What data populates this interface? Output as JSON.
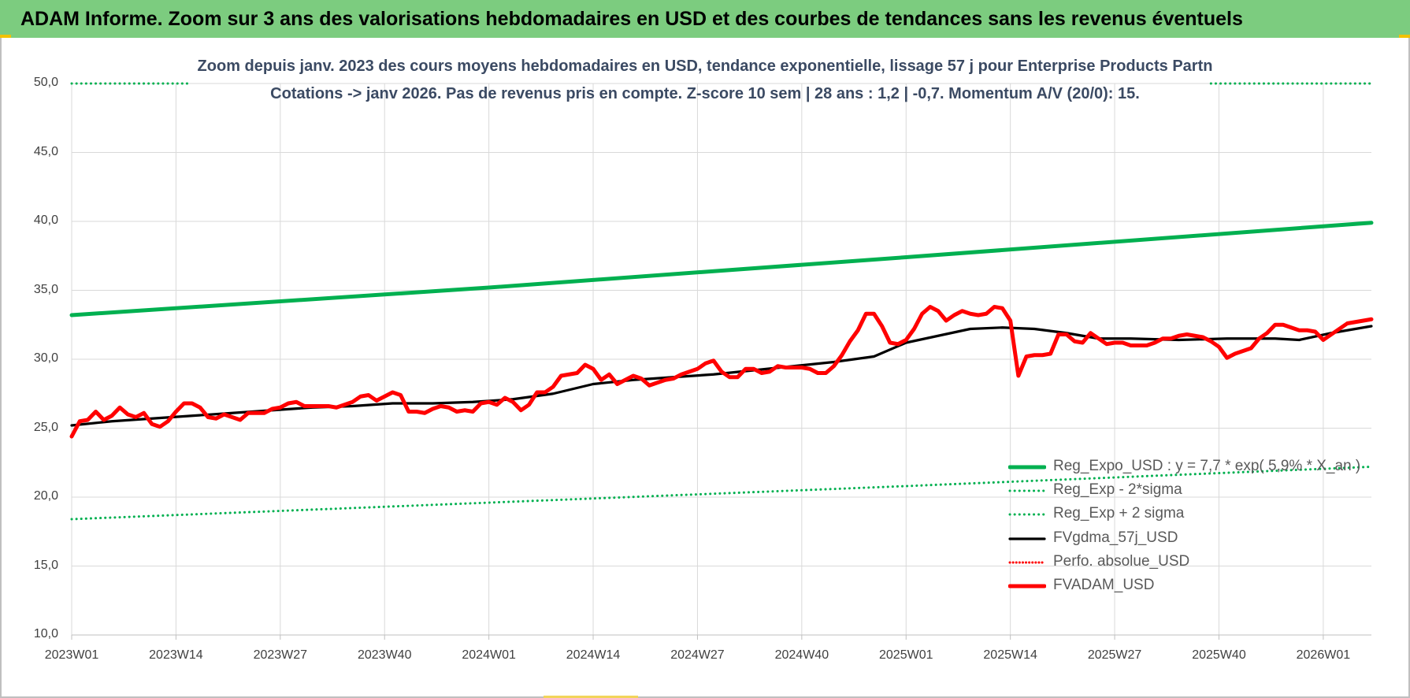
{
  "header": {
    "title": "ADAM Informe. Zoom sur 3 ans des valorisations hebdomadaires en USD et des courbes de tendances sans les revenus éventuels"
  },
  "colors": {
    "banner": "#7ccc7f",
    "trend": "#00b050",
    "fair_value": "#000000",
    "price": "#ff0000",
    "grid": "#d9d9d9"
  },
  "chart_data": {
    "type": "line",
    "title": "Zoom depuis janv. 2023 des cours moyens hebdomadaires en USD, tendance exponentielle, lissage 57 j pour Enterprise Products Partn",
    "subtitle": "Cotations -> janv 2026. Pas de revenus pris en compte. Z-score 10 sem | 28 ans : 1,2 | -0,7. Momentum A/V (20/0): 15.",
    "xlabel": "",
    "ylabel": "",
    "ylim": [
      10,
      50
    ],
    "y_ticks": [
      "10,0",
      "15,0",
      "20,0",
      "25,0",
      "30,0",
      "35,0",
      "40,0",
      "45,0",
      "50,0"
    ],
    "x_ticks": [
      "2023W01",
      "2023W14",
      "2023W27",
      "2023W40",
      "2024W01",
      "2024W14",
      "2024W27",
      "2024W40",
      "2025W01",
      "2025W14",
      "2025W27",
      "2025W40",
      "2026W01"
    ],
    "x_range_weeks": [
      0,
      162
    ],
    "grid": true,
    "legend_position": "bottom-right",
    "series": [
      {
        "name": "Reg_Expo_USD : y = 7,7 * exp( 5,9% * X_an )",
        "style": "solid-thick",
        "color": "#00b050",
        "points": [
          [
            0,
            33.2
          ],
          [
            52,
            35.2
          ],
          [
            104,
            37.4
          ],
          [
            162,
            39.9
          ]
        ]
      },
      {
        "name": "Reg_Exp - 2*sigma",
        "style": "dotted",
        "color": "#00b050",
        "points": [
          [
            0,
            18.4
          ],
          [
            52,
            19.6
          ],
          [
            104,
            20.8
          ],
          [
            162,
            22.2
          ]
        ]
      },
      {
        "name": "Reg_Exp + 2 sigma",
        "style": "dotted",
        "color": "#00b050",
        "points": [
          [
            0,
            50.0
          ],
          [
            14.8,
            50.0
          ],
          [
            142,
            50.0
          ],
          [
            162,
            50.0
          ]
        ]
      },
      {
        "name": "FVgdma_57j_USD",
        "style": "solid",
        "color": "#000000",
        "points": [
          [
            0,
            25.2
          ],
          [
            5,
            25.5
          ],
          [
            10,
            25.7
          ],
          [
            15,
            25.9
          ],
          [
            20,
            26.1
          ],
          [
            25,
            26.3
          ],
          [
            30,
            26.5
          ],
          [
            35,
            26.6
          ],
          [
            40,
            26.8
          ],
          [
            45,
            26.8
          ],
          [
            50,
            26.9
          ],
          [
            55,
            27.1
          ],
          [
            60,
            27.5
          ],
          [
            65,
            28.2
          ],
          [
            70,
            28.5
          ],
          [
            75,
            28.7
          ],
          [
            80,
            28.9
          ],
          [
            85,
            29.2
          ],
          [
            90,
            29.5
          ],
          [
            95,
            29.8
          ],
          [
            100,
            30.2
          ],
          [
            104,
            31.2
          ],
          [
            108,
            31.7
          ],
          [
            112,
            32.2
          ],
          [
            116,
            32.3
          ],
          [
            120,
            32.2
          ],
          [
            124,
            31.9
          ],
          [
            128,
            31.5
          ],
          [
            132,
            31.5
          ],
          [
            138,
            31.4
          ],
          [
            144,
            31.5
          ],
          [
            150,
            31.5
          ],
          [
            153,
            31.4
          ],
          [
            157,
            31.9
          ],
          [
            160,
            32.2
          ],
          [
            162,
            32.4
          ]
        ]
      },
      {
        "name": "Perfo. absolue_USD",
        "style": "dotted",
        "color": "#ff0000",
        "points": []
      },
      {
        "name": "FVADAM_USD",
        "style": "solid-thick",
        "color": "#ff0000",
        "points": [
          [
            0,
            24.4
          ],
          [
            1,
            25.5
          ],
          [
            2,
            25.6
          ],
          [
            3,
            26.2
          ],
          [
            4,
            25.6
          ],
          [
            5,
            25.9
          ],
          [
            6,
            26.5
          ],
          [
            7,
            26.0
          ],
          [
            8,
            25.8
          ],
          [
            9,
            26.1
          ],
          [
            10,
            25.3
          ],
          [
            11,
            25.1
          ],
          [
            12,
            25.5
          ],
          [
            13,
            26.2
          ],
          [
            14,
            26.8
          ],
          [
            15,
            26.8
          ],
          [
            16,
            26.5
          ],
          [
            17,
            25.8
          ],
          [
            18,
            25.7
          ],
          [
            19,
            26.0
          ],
          [
            20,
            25.8
          ],
          [
            21,
            25.6
          ],
          [
            22,
            26.1
          ],
          [
            23,
            26.1
          ],
          [
            24,
            26.1
          ],
          [
            25,
            26.4
          ],
          [
            26,
            26.5
          ],
          [
            27,
            26.8
          ],
          [
            28,
            26.9
          ],
          [
            29,
            26.6
          ],
          [
            30,
            26.6
          ],
          [
            31,
            26.6
          ],
          [
            32,
            26.6
          ],
          [
            33,
            26.5
          ],
          [
            34,
            26.7
          ],
          [
            35,
            26.9
          ],
          [
            36,
            27.3
          ],
          [
            37,
            27.4
          ],
          [
            38,
            27.0
          ],
          [
            39,
            27.3
          ],
          [
            40,
            27.6
          ],
          [
            41,
            27.4
          ],
          [
            42,
            26.2
          ],
          [
            43,
            26.2
          ],
          [
            44,
            26.1
          ],
          [
            45,
            26.4
          ],
          [
            46,
            26.6
          ],
          [
            47,
            26.5
          ],
          [
            48,
            26.2
          ],
          [
            49,
            26.3
          ],
          [
            50,
            26.2
          ],
          [
            51,
            26.8
          ],
          [
            52,
            26.9
          ],
          [
            53,
            26.7
          ],
          [
            54,
            27.2
          ],
          [
            55,
            26.9
          ],
          [
            56,
            26.3
          ],
          [
            57,
            26.7
          ],
          [
            58,
            27.6
          ],
          [
            59,
            27.6
          ],
          [
            60,
            28.0
          ],
          [
            61,
            28.8
          ],
          [
            62,
            28.9
          ],
          [
            63,
            29.0
          ],
          [
            64,
            29.6
          ],
          [
            65,
            29.3
          ],
          [
            66,
            28.5
          ],
          [
            67,
            28.9
          ],
          [
            68,
            28.2
          ],
          [
            69,
            28.5
          ],
          [
            70,
            28.8
          ],
          [
            71,
            28.6
          ],
          [
            72,
            28.1
          ],
          [
            73,
            28.3
          ],
          [
            74,
            28.5
          ],
          [
            75,
            28.6
          ],
          [
            76,
            28.9
          ],
          [
            77,
            29.1
          ],
          [
            78,
            29.3
          ],
          [
            79,
            29.7
          ],
          [
            80,
            29.9
          ],
          [
            81,
            29.1
          ],
          [
            82,
            28.7
          ],
          [
            83,
            28.7
          ],
          [
            84,
            29.3
          ],
          [
            85,
            29.3
          ],
          [
            86,
            29.0
          ],
          [
            87,
            29.1
          ],
          [
            88,
            29.5
          ],
          [
            89,
            29.4
          ],
          [
            90,
            29.4
          ],
          [
            91,
            29.4
          ],
          [
            92,
            29.3
          ],
          [
            93,
            29.0
          ],
          [
            94,
            29.0
          ],
          [
            95,
            29.5
          ],
          [
            96,
            30.3
          ],
          [
            97,
            31.3
          ],
          [
            98,
            32.1
          ],
          [
            99,
            33.3
          ],
          [
            100,
            33.3
          ],
          [
            101,
            32.4
          ],
          [
            102,
            31.2
          ],
          [
            103,
            31.1
          ],
          [
            104,
            31.4
          ],
          [
            105,
            32.2
          ],
          [
            106,
            33.3
          ],
          [
            107,
            33.8
          ],
          [
            108,
            33.5
          ],
          [
            109,
            32.8
          ],
          [
            110,
            33.2
          ],
          [
            111,
            33.5
          ],
          [
            112,
            33.3
          ],
          [
            113,
            33.2
          ],
          [
            114,
            33.3
          ],
          [
            115,
            33.8
          ],
          [
            116,
            33.7
          ],
          [
            117,
            32.8
          ],
          [
            118,
            28.8
          ],
          [
            119,
            30.2
          ],
          [
            120,
            30.3
          ],
          [
            121,
            30.3
          ],
          [
            122,
            30.4
          ],
          [
            123,
            31.8
          ],
          [
            124,
            31.8
          ],
          [
            125,
            31.3
          ],
          [
            126,
            31.2
          ],
          [
            127,
            31.9
          ],
          [
            128,
            31.5
          ],
          [
            129,
            31.1
          ],
          [
            130,
            31.2
          ],
          [
            131,
            31.2
          ],
          [
            132,
            31.0
          ],
          [
            133,
            31.0
          ],
          [
            134,
            31.0
          ],
          [
            135,
            31.2
          ],
          [
            136,
            31.5
          ],
          [
            137,
            31.5
          ],
          [
            138,
            31.7
          ],
          [
            139,
            31.8
          ],
          [
            140,
            31.7
          ],
          [
            141,
            31.6
          ],
          [
            142,
            31.3
          ],
          [
            143,
            30.9
          ],
          [
            144,
            30.1
          ],
          [
            145,
            30.4
          ],
          [
            146,
            30.6
          ],
          [
            147,
            30.8
          ],
          [
            148,
            31.5
          ],
          [
            149,
            31.9
          ],
          [
            150,
            32.5
          ],
          [
            151,
            32.5
          ],
          [
            152,
            32.3
          ],
          [
            153,
            32.1
          ],
          [
            154,
            32.1
          ],
          [
            155,
            32.0
          ],
          [
            156,
            31.4
          ],
          [
            157,
            31.8
          ],
          [
            158,
            32.2
          ],
          [
            159,
            32.6
          ],
          [
            160,
            32.7
          ],
          [
            161,
            32.8
          ],
          [
            162,
            32.9
          ]
        ]
      }
    ]
  }
}
